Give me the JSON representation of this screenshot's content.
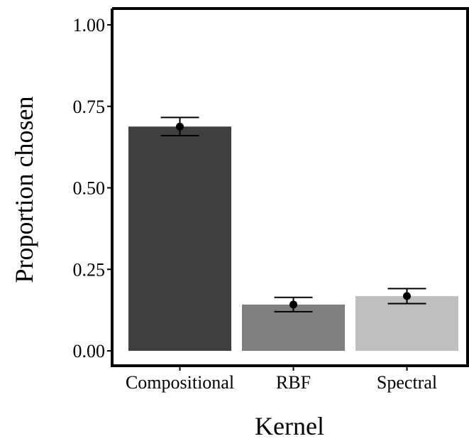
{
  "chart_data": {
    "type": "bar",
    "categories": [
      "Compositional",
      "RBF",
      "Spectral"
    ],
    "values": [
      0.688,
      0.142,
      0.168
    ],
    "error_bars": [
      {
        "lower": 0.66,
        "upper": 0.716
      },
      {
        "lower": 0.12,
        "upper": 0.164
      },
      {
        "lower": 0.145,
        "upper": 0.191
      }
    ],
    "point_estimates": [
      0.688,
      0.142,
      0.168
    ],
    "colors": [
      "#404040",
      "#7f7f7f",
      "#bfbfbf"
    ],
    "xlabel": "Kernel",
    "ylabel": "Proportion chosen",
    "ylim": [
      0,
      1.05
    ],
    "yticks": [
      0,
      0.25,
      0.5,
      0.75,
      1.0
    ],
    "ytick_labels": [
      "0.00",
      "0.25",
      "0.50",
      "0.75",
      "1.00"
    ],
    "grid": false,
    "legend": "none"
  }
}
